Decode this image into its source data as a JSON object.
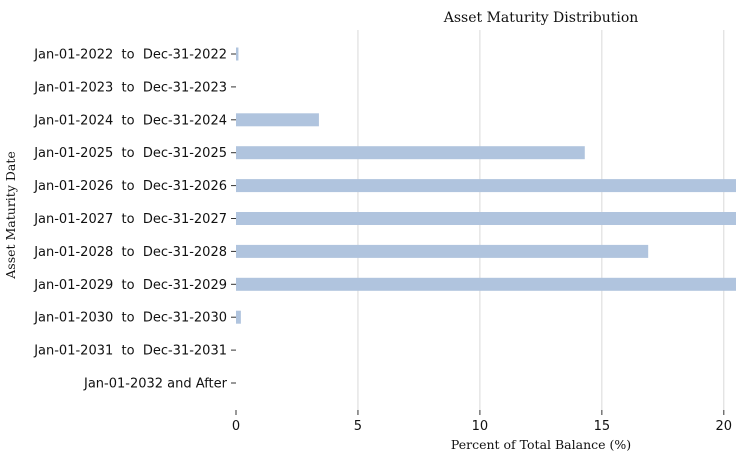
{
  "chart_data": {
    "type": "bar",
    "orientation": "horizontal",
    "title": "Asset Maturity Distribution",
    "xlabel": "Percent of Total Balance (%)",
    "ylabel": "Asset Maturity Date",
    "categories": [
      "Jan-01-2022  to  Dec-31-2022",
      "Jan-01-2023  to  Dec-31-2023",
      "Jan-01-2024  to  Dec-31-2024",
      "Jan-01-2025  to  Dec-31-2025",
      "Jan-01-2026  to  Dec-31-2026",
      "Jan-01-2027  to  Dec-31-2027",
      "Jan-01-2028  to  Dec-31-2028",
      "Jan-01-2029  to  Dec-31-2029",
      "Jan-01-2030  to  Dec-31-2030",
      "Jan-01-2031  to  Dec-31-2031",
      "Jan-01-2032 and After"
    ],
    "values": [
      0.1,
      0.0,
      3.4,
      14.3,
      21.5,
      21.5,
      16.9,
      21.5,
      0.2,
      0.0,
      0.0
    ],
    "xticks": [
      0,
      5,
      10,
      15,
      20
    ],
    "xlim": [
      0,
      20.5
    ],
    "grid": "vertical",
    "bar_color": "#b0c4de"
  }
}
